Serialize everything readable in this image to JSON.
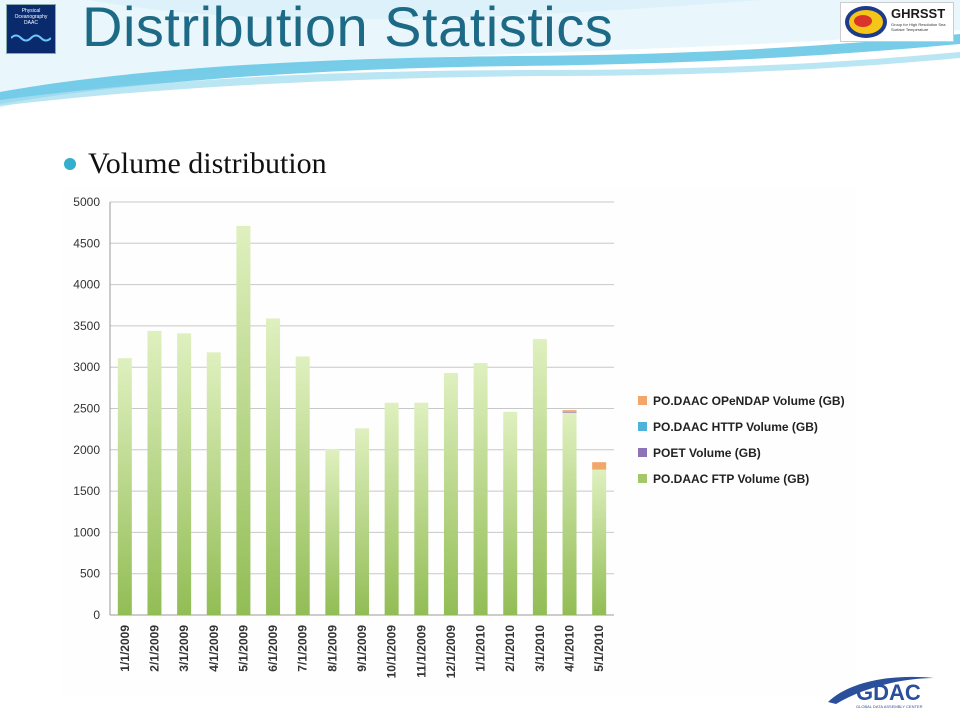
{
  "slide": {
    "title": "Distribution Statistics",
    "bullet": "Volume distribution",
    "logo_left_text": "Physical Oceanography DAAC",
    "logo_right_text": "GHRSST",
    "logo_right_tagline": "Group for High Resolution Sea Surface Temperature",
    "logo_bottom_text": "GDAC",
    "logo_bottom_tagline": "GLOBAL DATA ASSEMBLY CENTER",
    "colors": {
      "title": "#1d6a86",
      "bullet": "#33aecd",
      "swoosh": "#5fc4e4"
    }
  },
  "chart_data": {
    "type": "bar",
    "stacked": true,
    "categories": [
      "1/1/2009",
      "2/1/2009",
      "3/1/2009",
      "4/1/2009",
      "5/1/2009",
      "6/1/2009",
      "7/1/2009",
      "8/1/2009",
      "9/1/2009",
      "10/1/2009",
      "11/1/2009",
      "12/1/2009",
      "1/1/2010",
      "2/1/2010",
      "3/1/2010",
      "4/1/2010",
      "5/1/2010"
    ],
    "series": [
      {
        "name": "PO.DAAC FTP Volume (GB)",
        "color": "#a3c86a",
        "values": [
          3110,
          3440,
          3410,
          3180,
          4710,
          3590,
          3130,
          2010,
          2260,
          2570,
          2570,
          2930,
          3050,
          2460,
          3340,
          2450,
          1760
        ]
      },
      {
        "name": "POET Volume (GB)",
        "color": "#8e72b8",
        "values": [
          0,
          0,
          0,
          0,
          0,
          0,
          0,
          0,
          0,
          0,
          0,
          0,
          0,
          0,
          0,
          10,
          0
        ]
      },
      {
        "name": "PO.DAAC HTTP Volume (GB)",
        "color": "#4fb3d9",
        "values": [
          0,
          0,
          0,
          0,
          0,
          0,
          0,
          0,
          0,
          0,
          0,
          0,
          0,
          0,
          0,
          0,
          0
        ]
      },
      {
        "name": "PO.DAAC OPeNDAP Volume (GB)",
        "color": "#f2a66a",
        "values": [
          0,
          0,
          0,
          0,
          0,
          0,
          0,
          0,
          0,
          0,
          0,
          0,
          0,
          0,
          0,
          20,
          90
        ]
      }
    ],
    "legend_order": [
      "PO.DAAC OPeNDAP Volume (GB)",
      "PO.DAAC HTTP Volume (GB)",
      "POET Volume (GB)",
      "PO.DAAC FTP Volume (GB)"
    ],
    "yticks": [
      0,
      500,
      1000,
      1500,
      2000,
      2500,
      3000,
      3500,
      4000,
      4500,
      5000
    ],
    "ylim": [
      0,
      5000
    ],
    "grid": true,
    "legend_position": "right"
  }
}
